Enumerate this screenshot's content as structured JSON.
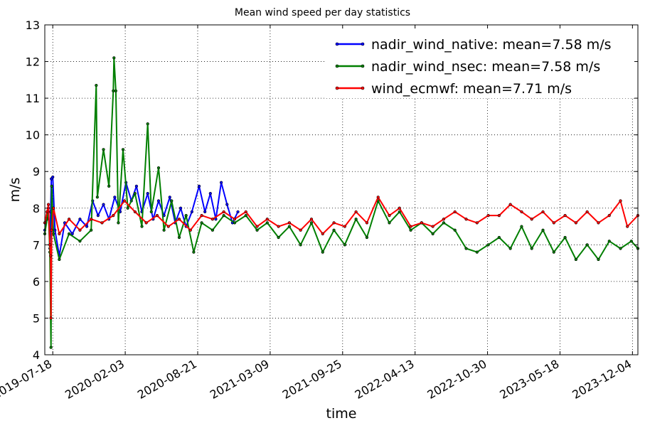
{
  "chart_data": {
    "type": "line",
    "title": "Mean wind speed per day statistics",
    "xlabel": "time",
    "ylabel": "m/s",
    "xlim": [
      "2019-06-26",
      "2023-12-19"
    ],
    "ylim": [
      4,
      13
    ],
    "yticks": [
      4,
      5,
      6,
      7,
      8,
      9,
      10,
      11,
      12,
      13
    ],
    "xticks": [
      "2019-07-18",
      "2020-02-03",
      "2020-08-21",
      "2021-03-09",
      "2021-09-25",
      "2022-04-13",
      "2022-10-30",
      "2023-05-18",
      "2023-12-04"
    ],
    "grid": true,
    "legend_position": "top-right",
    "series": [
      {
        "name": "nadir_wind_native: mean=7.58 m/s",
        "color": "#0000ff",
        "points": [
          [
            "2019-06-26",
            7.4
          ],
          [
            "2019-07-02",
            7.8
          ],
          [
            "2019-07-06",
            8.0
          ],
          [
            "2019-07-10",
            6.9
          ],
          [
            "2019-07-12",
            7.9
          ],
          [
            "2019-07-14",
            8.8
          ],
          [
            "2019-07-18",
            8.85
          ],
          [
            "2019-07-24",
            7.4
          ],
          [
            "2019-08-05",
            6.7
          ],
          [
            "2019-08-20",
            7.6
          ],
          [
            "2019-09-10",
            7.3
          ],
          [
            "2019-10-01",
            7.7
          ],
          [
            "2019-10-20",
            7.5
          ],
          [
            "2019-11-05",
            8.2
          ],
          [
            "2019-11-20",
            7.8
          ],
          [
            "2019-12-05",
            8.1
          ],
          [
            "2019-12-20",
            7.7
          ],
          [
            "2020-01-05",
            8.3
          ],
          [
            "2020-01-20",
            7.9
          ],
          [
            "2020-02-05",
            8.7
          ],
          [
            "2020-02-20",
            8.2
          ],
          [
            "2020-03-05",
            8.6
          ],
          [
            "2020-03-20",
            7.9
          ],
          [
            "2020-04-05",
            8.4
          ],
          [
            "2020-04-20",
            7.7
          ],
          [
            "2020-05-05",
            8.2
          ],
          [
            "2020-05-20",
            7.8
          ],
          [
            "2020-06-05",
            8.3
          ],
          [
            "2020-06-20",
            7.6
          ],
          [
            "2020-07-05",
            8.0
          ],
          [
            "2020-07-20",
            7.5
          ],
          [
            "2020-08-05",
            7.9
          ],
          [
            "2020-08-25",
            8.6
          ],
          [
            "2020-09-10",
            7.9
          ],
          [
            "2020-09-25",
            8.4
          ],
          [
            "2020-10-10",
            7.7
          ],
          [
            "2020-10-25",
            8.7
          ],
          [
            "2020-11-10",
            8.1
          ],
          [
            "2020-11-25",
            7.6
          ],
          [
            "2020-12-10",
            7.9
          ]
        ]
      },
      {
        "name": "nadir_wind_nsec: mean=7.58 m/s",
        "color": "#007f00",
        "points": [
          [
            "2019-06-26",
            7.3
          ],
          [
            "2019-07-02",
            7.7
          ],
          [
            "2019-07-06",
            7.9
          ],
          [
            "2019-07-10",
            6.8
          ],
          [
            "2019-07-13",
            4.2
          ],
          [
            "2019-07-15",
            8.6
          ],
          [
            "2019-07-20",
            7.3
          ],
          [
            "2019-08-05",
            6.6
          ],
          [
            "2019-09-01",
            7.3
          ],
          [
            "2019-10-01",
            7.1
          ],
          [
            "2019-11-01",
            7.4
          ],
          [
            "2019-11-15",
            11.35
          ],
          [
            "2019-11-18",
            8.3
          ],
          [
            "2019-12-05",
            9.6
          ],
          [
            "2019-12-20",
            8.6
          ],
          [
            "2020-01-01",
            11.2
          ],
          [
            "2020-01-03",
            12.1
          ],
          [
            "2020-01-08",
            11.2
          ],
          [
            "2020-01-15",
            7.6
          ],
          [
            "2020-01-28",
            9.6
          ],
          [
            "2020-02-10",
            8.0
          ],
          [
            "2020-03-01",
            8.4
          ],
          [
            "2020-03-20",
            7.5
          ],
          [
            "2020-04-05",
            10.3
          ],
          [
            "2020-04-15",
            7.9
          ],
          [
            "2020-05-05",
            9.1
          ],
          [
            "2020-05-20",
            7.4
          ],
          [
            "2020-06-10",
            8.2
          ],
          [
            "2020-07-01",
            7.2
          ],
          [
            "2020-07-20",
            7.8
          ],
          [
            "2020-08-10",
            6.8
          ],
          [
            "2020-09-01",
            7.6
          ],
          [
            "2020-10-01",
            7.4
          ],
          [
            "2020-11-01",
            7.8
          ],
          [
            "2020-12-01",
            7.6
          ],
          [
            "2021-01-01",
            7.8
          ],
          [
            "2021-02-01",
            7.4
          ],
          [
            "2021-03-01",
            7.6
          ],
          [
            "2021-04-01",
            7.2
          ],
          [
            "2021-05-01",
            7.5
          ],
          [
            "2021-06-01",
            7.0
          ],
          [
            "2021-07-01",
            7.6
          ],
          [
            "2021-08-01",
            6.8
          ],
          [
            "2021-09-01",
            7.4
          ],
          [
            "2021-10-01",
            7.0
          ],
          [
            "2021-11-01",
            7.7
          ],
          [
            "2021-12-01",
            7.2
          ],
          [
            "2022-01-01",
            8.2
          ],
          [
            "2022-02-01",
            7.6
          ],
          [
            "2022-03-01",
            7.9
          ],
          [
            "2022-04-01",
            7.4
          ],
          [
            "2022-05-01",
            7.6
          ],
          [
            "2022-06-01",
            7.3
          ],
          [
            "2022-07-01",
            7.6
          ],
          [
            "2022-08-01",
            7.4
          ],
          [
            "2022-09-01",
            6.9
          ],
          [
            "2022-10-01",
            6.8
          ],
          [
            "2022-11-01",
            7.0
          ],
          [
            "2022-12-01",
            7.2
          ],
          [
            "2023-01-01",
            6.9
          ],
          [
            "2023-02-01",
            7.5
          ],
          [
            "2023-03-01",
            6.9
          ],
          [
            "2023-04-01",
            7.4
          ],
          [
            "2023-05-01",
            6.8
          ],
          [
            "2023-06-01",
            7.2
          ],
          [
            "2023-07-01",
            6.6
          ],
          [
            "2023-08-01",
            7.0
          ],
          [
            "2023-09-01",
            6.6
          ],
          [
            "2023-10-01",
            7.1
          ],
          [
            "2023-11-01",
            6.9
          ],
          [
            "2023-12-01",
            7.1
          ],
          [
            "2023-12-19",
            6.9
          ]
        ]
      },
      {
        "name": "wind_ecmwf: mean=7.71 m/s",
        "color": "#ff0000",
        "points": [
          [
            "2019-06-26",
            7.6
          ],
          [
            "2019-07-02",
            7.9
          ],
          [
            "2019-07-06",
            8.1
          ],
          [
            "2019-07-10",
            7.0
          ],
          [
            "2019-07-12",
            6.7
          ],
          [
            "2019-07-13",
            5.0
          ],
          [
            "2019-07-15",
            7.4
          ],
          [
            "2019-07-20",
            8.0
          ],
          [
            "2019-08-05",
            7.3
          ],
          [
            "2019-09-01",
            7.7
          ],
          [
            "2019-10-01",
            7.4
          ],
          [
            "2019-11-01",
            7.7
          ],
          [
            "2019-12-01",
            7.6
          ],
          [
            "2020-01-01",
            7.8
          ],
          [
            "2020-02-01",
            8.2
          ],
          [
            "2020-03-01",
            7.9
          ],
          [
            "2020-04-01",
            7.6
          ],
          [
            "2020-05-01",
            7.8
          ],
          [
            "2020-06-01",
            7.5
          ],
          [
            "2020-07-01",
            7.7
          ],
          [
            "2020-08-01",
            7.4
          ],
          [
            "2020-09-01",
            7.8
          ],
          [
            "2020-10-01",
            7.7
          ],
          [
            "2020-11-01",
            7.9
          ],
          [
            "2020-12-01",
            7.7
          ],
          [
            "2021-01-01",
            7.9
          ],
          [
            "2021-02-01",
            7.5
          ],
          [
            "2021-03-01",
            7.7
          ],
          [
            "2021-04-01",
            7.5
          ],
          [
            "2021-05-01",
            7.6
          ],
          [
            "2021-06-01",
            7.4
          ],
          [
            "2021-07-01",
            7.7
          ],
          [
            "2021-08-01",
            7.3
          ],
          [
            "2021-09-01",
            7.6
          ],
          [
            "2021-10-01",
            7.5
          ],
          [
            "2021-11-01",
            7.9
          ],
          [
            "2021-12-01",
            7.6
          ],
          [
            "2022-01-01",
            8.3
          ],
          [
            "2022-02-01",
            7.8
          ],
          [
            "2022-03-01",
            8.0
          ],
          [
            "2022-04-01",
            7.5
          ],
          [
            "2022-05-01",
            7.6
          ],
          [
            "2022-06-01",
            7.5
          ],
          [
            "2022-07-01",
            7.7
          ],
          [
            "2022-08-01",
            7.9
          ],
          [
            "2022-09-01",
            7.7
          ],
          [
            "2022-10-01",
            7.6
          ],
          [
            "2022-11-01",
            7.8
          ],
          [
            "2022-12-01",
            7.8
          ],
          [
            "2023-01-01",
            8.1
          ],
          [
            "2023-02-01",
            7.9
          ],
          [
            "2023-03-01",
            7.7
          ],
          [
            "2023-04-01",
            7.9
          ],
          [
            "2023-05-01",
            7.6
          ],
          [
            "2023-06-01",
            7.8
          ],
          [
            "2023-07-01",
            7.6
          ],
          [
            "2023-08-01",
            7.9
          ],
          [
            "2023-09-01",
            7.6
          ],
          [
            "2023-10-01",
            7.8
          ],
          [
            "2023-11-01",
            8.2
          ],
          [
            "2023-11-20",
            7.5
          ],
          [
            "2023-12-19",
            7.8
          ]
        ]
      }
    ]
  }
}
